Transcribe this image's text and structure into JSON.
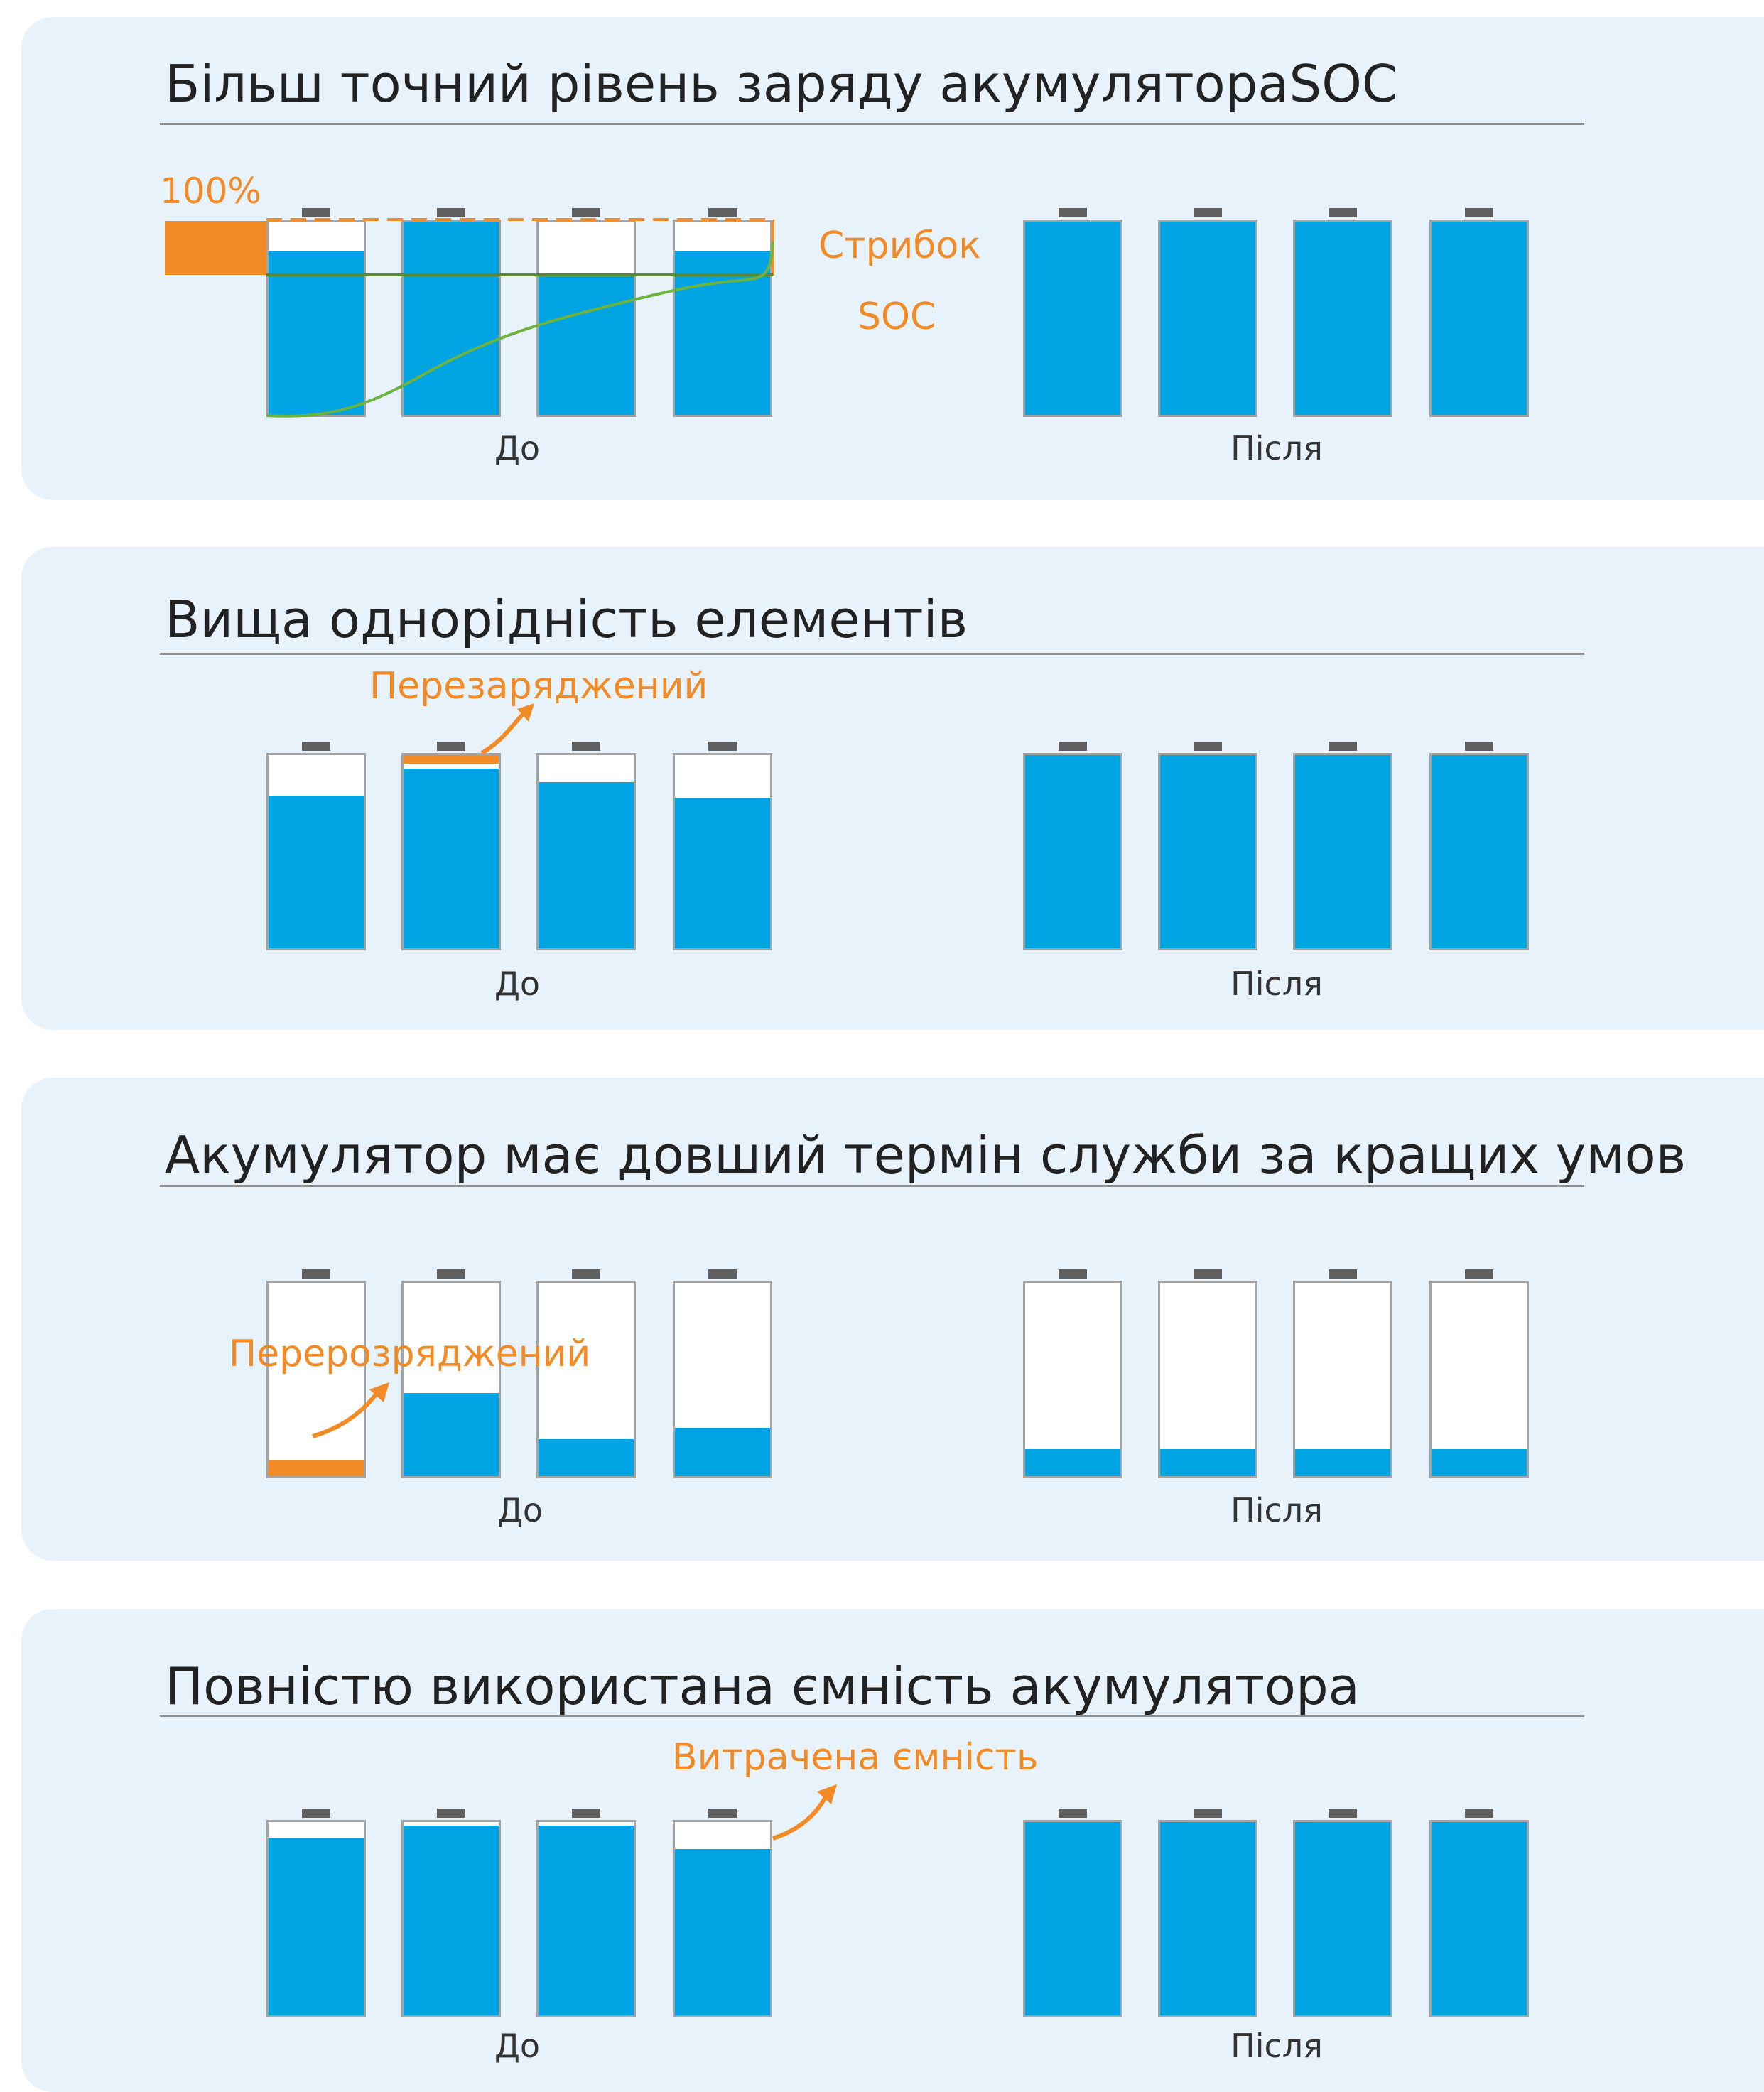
{
  "colors": {
    "panel_bg": "#e8f2fa",
    "battery_fill": "#00a4e2",
    "accent_orange": "#f28a26",
    "soc_curve": "#6cb33f"
  },
  "sections": [
    {
      "title": "Більш точний рівень заряду акумулятораSOC",
      "before_label": "До",
      "after_label": "Після",
      "before_levels": [
        0.85,
        1.0,
        0.72,
        0.85
      ],
      "after_levels": [
        1.0,
        1.0,
        1.0,
        1.0
      ],
      "annotations": {
        "percent": "100%",
        "jump_line1": "Стрибок",
        "jump_line2": "SOC"
      }
    },
    {
      "title": "Вища однорідність елементів",
      "before_label": "До",
      "after_label": "Після",
      "before_levels": [
        0.79,
        0.93,
        0.86,
        0.78
      ],
      "after_levels": [
        1.0,
        1.0,
        1.0,
        1.0
      ],
      "annotations": {
        "overcharged": "Перезаряджений"
      }
    },
    {
      "title": "Акумулятор має довший термін служби за кращих умов",
      "before_label": "До",
      "after_label": "Після",
      "before_levels": [
        0.08,
        0.43,
        0.19,
        0.25
      ],
      "after_levels": [
        0.14,
        0.14,
        0.14,
        0.14
      ],
      "annotations": {
        "overdischarged": "Перерозряджений"
      }
    },
    {
      "title": "Повністю використана ємність акумулятора",
      "before_label": "До",
      "after_label": "Після",
      "before_levels": [
        0.92,
        0.98,
        0.98,
        0.86
      ],
      "after_levels": [
        1.0,
        1.0,
        1.0,
        1.0
      ],
      "annotations": {
        "wasted": "Витрачена ємність"
      }
    }
  ]
}
